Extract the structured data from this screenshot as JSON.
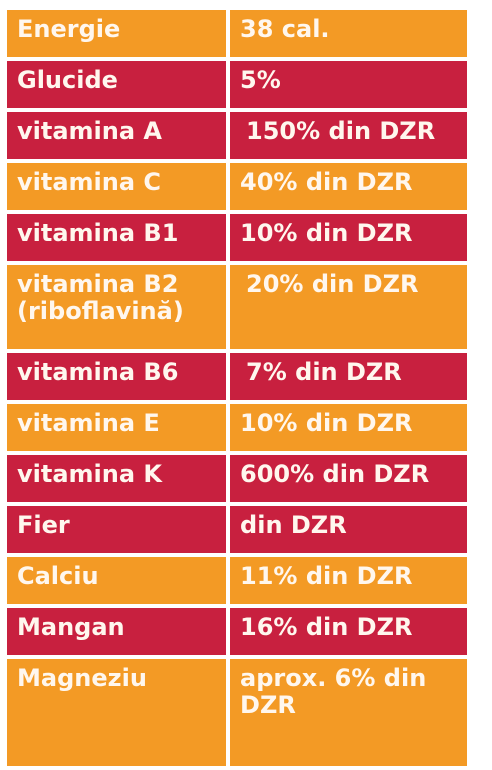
{
  "colors": {
    "orange": "#f39a25",
    "red": "#c8203f",
    "text": "#fff7ee"
  },
  "rows": [
    {
      "name": "Energie",
      "value": "38 cal."
    },
    {
      "name": "Glucide",
      "value": "5%"
    },
    {
      "name": "vitamina A",
      "value": "150% din DZR"
    },
    {
      "name": "vitamina C",
      "value": "40% din DZR"
    },
    {
      "name": "vitamina B1",
      "value": "10% din DZR"
    },
    {
      "name": "vitamina B2",
      "name_line2": "(riboflavină)",
      "value": "20% din DZR"
    },
    {
      "name": "vitamina B6",
      "value": "7% din DZR"
    },
    {
      "name": "vitamina E",
      "value": "10% din DZR"
    },
    {
      "name": "vitamina K",
      "value": "600% din DZR"
    },
    {
      "name": "Fier",
      "value": "din DZR"
    },
    {
      "name": "Calciu",
      "value": "11% din DZR"
    },
    {
      "name": "Mangan",
      "value": "16% din DZR"
    },
    {
      "name": "Magneziu",
      "value": "aprox. 6% din",
      "value_line2": "DZR"
    }
  ]
}
